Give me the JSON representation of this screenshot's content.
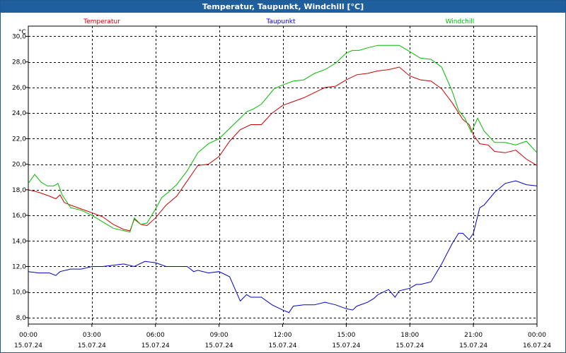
{
  "window": {
    "title": "Temperatur, Taupunkt, Windchill [°C]"
  },
  "chart_data": {
    "type": "line",
    "title": "Temperatur, Taupunkt, Windchill [°C]",
    "ylabel": "°C",
    "ylim": [
      7.5,
      30.8
    ],
    "xlim": [
      0,
      24
    ],
    "grid": true,
    "y_ticks": [
      "8,0",
      "10,0",
      "12,0",
      "14,0",
      "16,0",
      "18,0",
      "20,0",
      "22,0",
      "24,0",
      "26,0",
      "28,0",
      "30,0"
    ],
    "y_tick_values": [
      8,
      10,
      12,
      14,
      16,
      18,
      20,
      22,
      24,
      26,
      28,
      30
    ],
    "x_ticks": [
      {
        "time": "00:00",
        "date": "15.07.24"
      },
      {
        "time": "03:00",
        "date": "15.07.24"
      },
      {
        "time": "06:00",
        "date": "15.07.24"
      },
      {
        "time": "09:00",
        "date": "15.07.24"
      },
      {
        "time": "12:00",
        "date": "15.07.24"
      },
      {
        "time": "15:00",
        "date": "15.07.24"
      },
      {
        "time": "18:00",
        "date": "15.07.24"
      },
      {
        "time": "21:00",
        "date": "15.07.24"
      },
      {
        "time": "00:00",
        "date": "16.07.24"
      }
    ],
    "x_tick_values": [
      0,
      3,
      6,
      9,
      12,
      15,
      18,
      21,
      24
    ],
    "series": [
      {
        "name": "Temperatur",
        "color": "#cc0000",
        "x": [
          0,
          0.5,
          1,
          1.3,
          1.5,
          1.7,
          2,
          2.5,
          3,
          3.5,
          4,
          4.5,
          4.8,
          5,
          5.3,
          5.6,
          6,
          6.5,
          7,
          7.5,
          8,
          8.5,
          9,
          9.5,
          10,
          10.5,
          11,
          11.5,
          12,
          12.5,
          13,
          13.5,
          14,
          14.5,
          15,
          15.5,
          16,
          16.5,
          17,
          17.5,
          18,
          18.5,
          19,
          19.5,
          20,
          20.5,
          20.8,
          21,
          21.3,
          21.7,
          22,
          22.5,
          23,
          23.5,
          24
        ],
        "y": [
          18.0,
          17.8,
          17.5,
          17.3,
          17.6,
          17.0,
          16.8,
          16.5,
          16.2,
          15.9,
          15.3,
          14.9,
          14.8,
          15.7,
          15.3,
          15.2,
          15.8,
          16.8,
          17.5,
          18.7,
          19.9,
          20.0,
          20.6,
          21.8,
          22.7,
          23.1,
          23.1,
          24.0,
          24.6,
          24.9,
          25.2,
          25.6,
          26.0,
          26.1,
          26.6,
          27.0,
          27.1,
          27.3,
          27.4,
          27.6,
          26.9,
          26.6,
          26.5,
          25.9,
          24.8,
          23.5,
          23.1,
          22.3,
          21.6,
          21.5,
          21.0,
          20.9,
          21.1,
          20.4,
          19.9
        ]
      },
      {
        "name": "Taupunkt",
        "color": "#0000cc",
        "x": [
          0,
          0.5,
          1,
          1.3,
          1.5,
          2,
          2.5,
          3,
          3.5,
          4,
          4.5,
          5,
          5.5,
          6,
          6.5,
          7,
          7.5,
          7.8,
          8,
          8.5,
          9,
          9.5,
          10,
          10.3,
          10.5,
          11,
          11.5,
          12,
          12.3,
          12.5,
          13,
          13.5,
          14,
          14.5,
          15,
          15.3,
          15.5,
          16,
          16.3,
          16.5,
          17,
          17.3,
          17.5,
          18,
          18.3,
          18.5,
          19,
          19.5,
          20,
          20.3,
          20.5,
          20.8,
          21,
          21.3,
          21.5,
          22,
          22.5,
          23,
          23.5,
          24
        ],
        "y": [
          11.6,
          11.5,
          11.5,
          11.3,
          11.6,
          11.8,
          11.8,
          12.0,
          12.0,
          12.1,
          12.2,
          12.0,
          12.4,
          12.3,
          12.0,
          12.0,
          12.0,
          11.6,
          11.7,
          11.5,
          11.6,
          11.2,
          9.3,
          9.8,
          9.6,
          9.6,
          9.0,
          8.6,
          8.4,
          8.9,
          9.0,
          9.0,
          9.2,
          9.0,
          8.7,
          8.6,
          8.9,
          9.2,
          9.5,
          9.8,
          10.2,
          9.6,
          10.1,
          10.3,
          10.6,
          10.6,
          10.8,
          12.2,
          13.8,
          14.6,
          14.6,
          14.1,
          14.6,
          16.6,
          16.8,
          17.8,
          18.5,
          18.7,
          18.4,
          18.3
        ]
      },
      {
        "name": "Windchill",
        "color": "#00bb00",
        "x": [
          0,
          0.3,
          0.6,
          0.9,
          1.2,
          1.4,
          1.6,
          1.8,
          2,
          2.5,
          3,
          3.5,
          4,
          4.5,
          4.8,
          5,
          5.3,
          5.6,
          6,
          6.3,
          6.6,
          7,
          7.5,
          8,
          8.5,
          9,
          9.5,
          10,
          10.3,
          10.6,
          11,
          11.3,
          11.6,
          12,
          12.5,
          13,
          13.5,
          14,
          14.5,
          15,
          15.3,
          15.6,
          16,
          16.5,
          17,
          17.5,
          18,
          18.5,
          19,
          19.5,
          20,
          20.3,
          20.6,
          20.9,
          21.2,
          21.5,
          22,
          22.5,
          23,
          23.5,
          24
        ],
        "y": [
          18.5,
          19.2,
          18.6,
          18.3,
          18.3,
          18.5,
          17.6,
          17.1,
          16.6,
          16.4,
          16.0,
          15.5,
          15.0,
          14.8,
          14.7,
          15.8,
          15.3,
          15.4,
          16.5,
          17.4,
          17.8,
          18.4,
          19.5,
          20.9,
          21.6,
          22.0,
          22.8,
          23.6,
          24.1,
          24.3,
          24.7,
          25.3,
          25.9,
          26.2,
          26.5,
          26.6,
          27.1,
          27.4,
          27.9,
          28.7,
          28.9,
          28.9,
          29.1,
          29.3,
          29.3,
          29.3,
          28.8,
          28.3,
          28.2,
          27.6,
          25.7,
          24.2,
          23.6,
          22.5,
          23.6,
          22.6,
          21.7,
          21.7,
          21.5,
          21.8,
          20.9
        ]
      }
    ]
  }
}
